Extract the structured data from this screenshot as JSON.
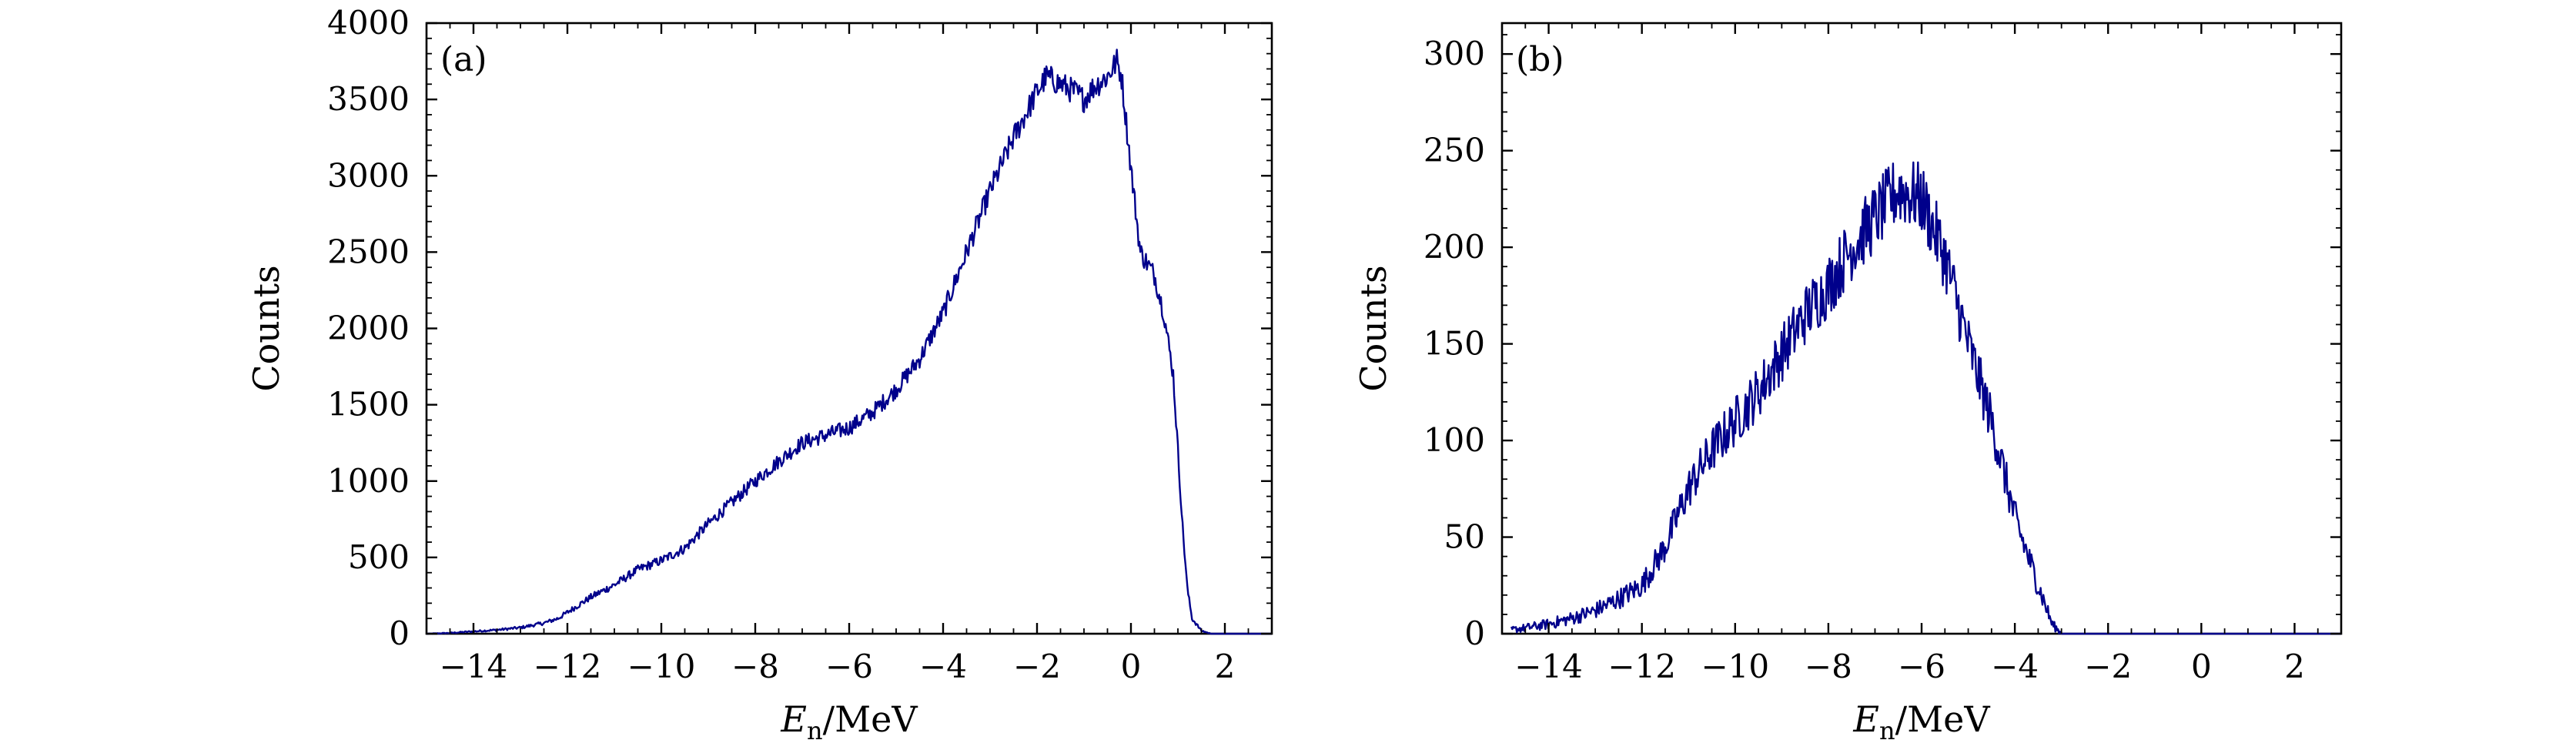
{
  "figure": {
    "line_color": "#00008B",
    "axis_color": "#000000"
  },
  "chart_data": [
    {
      "type": "line",
      "panel_label": "(a)",
      "xlabel_main": "E",
      "xlabel_sub": "n",
      "xlabel_unit": "/MeV",
      "ylabel": "Counts",
      "xlim": [
        -15,
        3
      ],
      "ylim": [
        0,
        4000
      ],
      "xticks": [
        -14,
        -12,
        -10,
        -8,
        -6,
        -4,
        -2,
        0,
        2
      ],
      "xtick_labels": [
        "−14",
        "−12",
        "−10",
        "−8",
        "−6",
        "−4",
        "−2",
        "0",
        "2"
      ],
      "yticks": [
        0,
        500,
        1000,
        1500,
        2000,
        2500,
        3000,
        3500,
        4000
      ],
      "ytick_labels": [
        "0",
        "500",
        "1000",
        "1500",
        "2000",
        "2500",
        "3000",
        "3500",
        "4000"
      ],
      "grid": false,
      "noise_amplitude": 90,
      "series": [
        {
          "x": [
            -15,
            -14.5,
            -14,
            -13.5,
            -13,
            -12.5,
            -12.2,
            -12,
            -11.5,
            -11,
            -10.5,
            -10,
            -9.5,
            -9,
            -8.5,
            -8,
            -7.5,
            -7,
            -6.5,
            -6,
            -5.5,
            -5,
            -4.5,
            -4,
            -3.5,
            -3,
            -2.5,
            -2,
            -1.8,
            -1.5,
            -1.2,
            -1,
            -0.8,
            -0.5,
            -0.3,
            -0.2,
            0,
            0.2,
            0.5,
            0.7,
            0.9,
            1.0,
            1.1,
            1.2,
            1.3,
            1.5,
            1.7,
            2,
            3
          ],
          "y": [
            0,
            5,
            15,
            25,
            40,
            70,
            100,
            140,
            240,
            320,
            420,
            480,
            560,
            720,
            860,
            1000,
            1130,
            1250,
            1300,
            1350,
            1450,
            1600,
            1800,
            2100,
            2500,
            2900,
            3250,
            3550,
            3650,
            3600,
            3550,
            3500,
            3580,
            3650,
            3750,
            3650,
            3050,
            2500,
            2350,
            2100,
            1700,
            1200,
            700,
            300,
            100,
            20,
            0,
            0,
            0
          ]
        }
      ]
    },
    {
      "type": "line",
      "panel_label": "(b)",
      "xlabel_main": "E",
      "xlabel_sub": "n",
      "xlabel_unit": "/MeV",
      "ylabel": "Counts",
      "xlim": [
        -15,
        3
      ],
      "ylim": [
        0,
        316
      ],
      "xticks": [
        -14,
        -12,
        -10,
        -8,
        -6,
        -4,
        -2,
        0,
        2
      ],
      "xtick_labels": [
        "−14",
        "−12",
        "−10",
        "−8",
        "−6",
        "−4",
        "−2",
        "0",
        "2"
      ],
      "yticks": [
        0,
        50,
        100,
        150,
        200,
        250,
        300
      ],
      "ytick_labels": [
        "0",
        "50",
        "100",
        "150",
        "200",
        "250",
        "300"
      ],
      "grid": false,
      "noise_amplitude": 22,
      "series": [
        {
          "x": [
            -14.8,
            -14.5,
            -14,
            -13.5,
            -13,
            -12.5,
            -12,
            -11.5,
            -11,
            -10.5,
            -10,
            -9.5,
            -9,
            -8.5,
            -8,
            -7.5,
            -7,
            -6.5,
            -6,
            -5.5,
            -5,
            -4.5,
            -4,
            -3.5,
            -3.2,
            -3.0,
            -2,
            0,
            3
          ],
          "y": [
            2,
            3,
            5,
            8,
            12,
            18,
            25,
            45,
            75,
            95,
            110,
            125,
            145,
            165,
            180,
            200,
            215,
            230,
            225,
            195,
            150,
            110,
            60,
            25,
            5,
            0,
            0,
            0,
            0
          ]
        }
      ]
    }
  ]
}
